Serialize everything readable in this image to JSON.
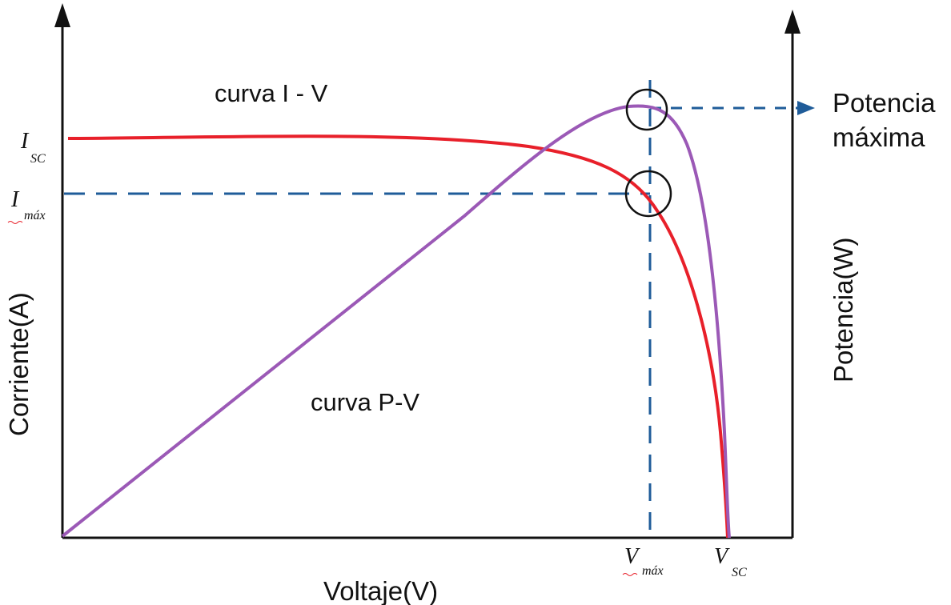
{
  "axes": {
    "x_label": "Voltaje(V)",
    "y_left_label": "Corriente(A)",
    "y_right_label": "Potencia(W)"
  },
  "curves": {
    "iv_label": "curva I - V",
    "pv_label": "curva P-V",
    "iv_color": "#e8202a",
    "pv_color": "#9b59b6"
  },
  "annotations": {
    "max_power_line1": "Potencia",
    "max_power_line2": "máxima",
    "isc_main": "I",
    "isc_sub": "SC",
    "imax_main": "I",
    "imax_sub": "máx",
    "vmax_main": "V",
    "vmax_sub": "máx",
    "vsc_main": "V",
    "vsc_sub": "SC",
    "guide_color": "#1f5c99"
  }
}
